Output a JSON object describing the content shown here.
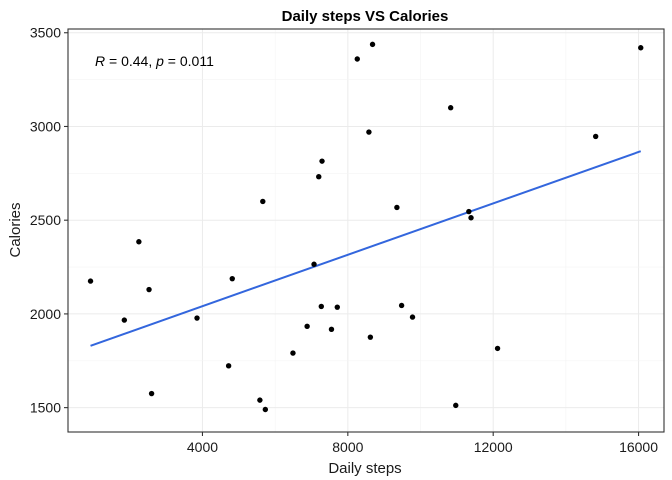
{
  "chart_data": {
    "type": "scatter",
    "title": "Daily steps VS Calories",
    "xlabel": "Daily steps",
    "ylabel": "Calories",
    "xlim": [
      300,
      16700
    ],
    "ylim": [
      1370,
      3520
    ],
    "xticks": [
      4000,
      8000,
      12000,
      16000
    ],
    "yticks": [
      1500,
      2000,
      2500,
      3000,
      3500
    ],
    "grid": true,
    "points": [
      {
        "x": 920,
        "y": 2175
      },
      {
        "x": 1850,
        "y": 1967
      },
      {
        "x": 2250,
        "y": 2385
      },
      {
        "x": 2530,
        "y": 2130
      },
      {
        "x": 2600,
        "y": 1575
      },
      {
        "x": 3850,
        "y": 1978
      },
      {
        "x": 4720,
        "y": 1723
      },
      {
        "x": 4820,
        "y": 2188
      },
      {
        "x": 5580,
        "y": 1540
      },
      {
        "x": 5660,
        "y": 2600
      },
      {
        "x": 5730,
        "y": 1490
      },
      {
        "x": 6490,
        "y": 1791
      },
      {
        "x": 6880,
        "y": 1934
      },
      {
        "x": 7070,
        "y": 2265
      },
      {
        "x": 7200,
        "y": 2732
      },
      {
        "x": 7270,
        "y": 2040
      },
      {
        "x": 7290,
        "y": 2815
      },
      {
        "x": 7550,
        "y": 1918
      },
      {
        "x": 7710,
        "y": 2036
      },
      {
        "x": 8260,
        "y": 3360
      },
      {
        "x": 8580,
        "y": 2970
      },
      {
        "x": 8620,
        "y": 1876
      },
      {
        "x": 8680,
        "y": 3438
      },
      {
        "x": 9350,
        "y": 2568
      },
      {
        "x": 9480,
        "y": 2045
      },
      {
        "x": 9780,
        "y": 1983
      },
      {
        "x": 10830,
        "y": 3100
      },
      {
        "x": 10970,
        "y": 1512
      },
      {
        "x": 11330,
        "y": 2546
      },
      {
        "x": 11390,
        "y": 2513
      },
      {
        "x": 12120,
        "y": 1816
      },
      {
        "x": 14820,
        "y": 2947
      },
      {
        "x": 16060,
        "y": 3420
      }
    ],
    "regression": {
      "x": [
        920,
        16060
      ],
      "y": [
        1830,
        2868
      ],
      "color": "#3366dd"
    },
    "point_color": "#000000",
    "annotation": {
      "r_label": "R",
      "r_text": " = 0.44, ",
      "p_label": "p",
      "p_text": " = 0.011"
    }
  }
}
